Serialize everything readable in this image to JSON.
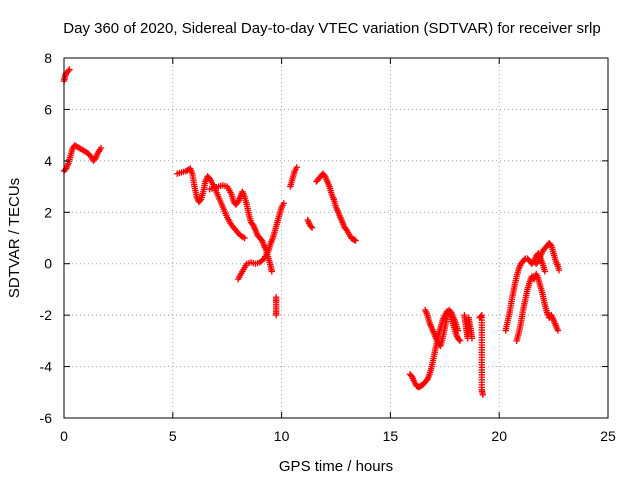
{
  "chart_data": {
    "type": "scatter",
    "title": "Day 360 of 2020, Sidereal Day-to-day VTEC variation (SDTVAR) for receiver srlp",
    "xlabel": "GPS time / hours",
    "ylabel": "SDTVAR / TECUs",
    "xlim": [
      0,
      25
    ],
    "ylim": [
      -6,
      8
    ],
    "xticks": [
      0,
      5,
      10,
      15,
      20,
      25
    ],
    "yticks": [
      -6,
      -4,
      -2,
      0,
      2,
      4,
      6,
      8
    ],
    "xtick_labels": [
      "0",
      "5",
      "10",
      "15",
      "20",
      "25"
    ],
    "ytick_labels": [
      "-6",
      "-4",
      "-2",
      "0",
      "2",
      "4",
      "6",
      "8"
    ],
    "grid": true,
    "marker": "plus",
    "color": "#ff0000",
    "series": [
      {
        "segments": [
          [
            [
              0.0,
              7.1
            ],
            [
              0.05,
              7.3
            ],
            [
              0.1,
              7.4
            ],
            [
              0.2,
              7.5
            ],
            [
              0.25,
              7.55
            ]
          ],
          [
            [
              0.0,
              3.6
            ],
            [
              0.1,
              3.7
            ],
            [
              0.2,
              3.9
            ],
            [
              0.3,
              4.2
            ],
            [
              0.4,
              4.5
            ],
            [
              0.5,
              4.6
            ],
            [
              0.7,
              4.5
            ],
            [
              0.9,
              4.4
            ],
            [
              1.1,
              4.3
            ],
            [
              1.25,
              4.15
            ],
            [
              1.35,
              4.0
            ],
            [
              1.45,
              4.1
            ],
            [
              1.55,
              4.3
            ],
            [
              1.7,
              4.5
            ]
          ],
          [
            [
              5.2,
              3.5
            ],
            [
              5.4,
              3.55
            ],
            [
              5.6,
              3.6
            ],
            [
              5.8,
              3.7
            ],
            [
              5.9,
              3.5
            ],
            [
              6.0,
              3.0
            ],
            [
              6.1,
              2.6
            ],
            [
              6.2,
              2.4
            ],
            [
              6.3,
              2.5
            ],
            [
              6.4,
              2.8
            ],
            [
              6.5,
              3.2
            ],
            [
              6.6,
              3.4
            ],
            [
              6.7,
              3.3
            ],
            [
              6.9,
              3.0
            ],
            [
              7.1,
              2.6
            ],
            [
              7.3,
              2.2
            ],
            [
              7.5,
              1.8
            ],
            [
              7.7,
              1.5
            ],
            [
              7.9,
              1.3
            ],
            [
              8.1,
              1.1
            ],
            [
              8.3,
              1.0
            ]
          ],
          [
            [
              6.7,
              2.9
            ],
            [
              6.9,
              2.95
            ],
            [
              7.1,
              3.0
            ],
            [
              7.3,
              3.05
            ],
            [
              7.5,
              3.0
            ],
            [
              7.7,
              2.7
            ],
            [
              7.8,
              2.4
            ],
            [
              7.9,
              2.3
            ],
            [
              8.0,
              2.4
            ],
            [
              8.1,
              2.6
            ],
            [
              8.2,
              2.8
            ],
            [
              8.3,
              2.6
            ],
            [
              8.4,
              2.3
            ],
            [
              8.5,
              1.9
            ],
            [
              8.6,
              1.6
            ],
            [
              8.7,
              1.5
            ],
            [
              8.8,
              1.3
            ],
            [
              8.9,
              1.1
            ],
            [
              9.0,
              1.0
            ],
            [
              9.1,
              0.9
            ],
            [
              9.2,
              0.7
            ],
            [
              9.3,
              0.5
            ],
            [
              9.4,
              0.2
            ],
            [
              9.5,
              -0.1
            ],
            [
              9.55,
              -0.3
            ]
          ],
          [
            [
              8.0,
              -0.6
            ],
            [
              8.1,
              -0.45
            ],
            [
              8.2,
              -0.3
            ],
            [
              8.3,
              -0.15
            ],
            [
              8.4,
              0.0
            ],
            [
              8.6,
              0.05
            ],
            [
              8.8,
              0.0
            ],
            [
              9.0,
              0.05
            ],
            [
              9.2,
              0.2
            ],
            [
              9.4,
              0.5
            ],
            [
              9.5,
              0.8
            ],
            [
              9.6,
              1.0
            ],
            [
              9.7,
              1.3
            ],
            [
              9.8,
              1.6
            ],
            [
              9.9,
              1.9
            ],
            [
              10.0,
              2.2
            ],
            [
              10.1,
              2.35
            ]
          ],
          [
            [
              9.75,
              -1.3
            ],
            [
              9.75,
              -1.5
            ],
            [
              9.75,
              -1.8
            ],
            [
              9.75,
              -2.0
            ]
          ],
          [
            [
              10.4,
              3.0
            ],
            [
              10.5,
              3.3
            ],
            [
              10.6,
              3.6
            ],
            [
              10.7,
              3.75
            ]
          ],
          [
            [
              11.2,
              1.7
            ],
            [
              11.3,
              1.5
            ],
            [
              11.4,
              1.4
            ]
          ],
          [
            [
              11.6,
              3.2
            ],
            [
              11.7,
              3.3
            ],
            [
              11.8,
              3.4
            ],
            [
              11.9,
              3.5
            ],
            [
              12.0,
              3.4
            ],
            [
              12.1,
              3.2
            ],
            [
              12.2,
              3.0
            ],
            [
              12.3,
              2.7
            ],
            [
              12.4,
              2.5
            ],
            [
              12.5,
              2.2
            ],
            [
              12.6,
              2.0
            ],
            [
              12.7,
              1.8
            ],
            [
              12.8,
              1.6
            ],
            [
              12.9,
              1.4
            ],
            [
              13.0,
              1.3
            ],
            [
              13.1,
              1.15
            ],
            [
              13.2,
              1.0
            ],
            [
              13.3,
              0.95
            ],
            [
              13.4,
              0.9
            ]
          ],
          [
            [
              15.9,
              -4.3
            ],
            [
              16.0,
              -4.4
            ],
            [
              16.1,
              -4.6
            ],
            [
              16.2,
              -4.75
            ],
            [
              16.3,
              -4.8
            ],
            [
              16.4,
              -4.75
            ],
            [
              16.5,
              -4.7
            ],
            [
              16.6,
              -4.6
            ],
            [
              16.7,
              -4.5
            ],
            [
              16.8,
              -4.3
            ],
            [
              16.9,
              -4.0
            ],
            [
              17.0,
              -3.6
            ],
            [
              17.1,
              -3.2
            ],
            [
              17.2,
              -2.8
            ],
            [
              17.3,
              -2.5
            ],
            [
              17.4,
              -2.2
            ],
            [
              17.5,
              -2.0
            ],
            [
              17.6,
              -1.85
            ],
            [
              17.7,
              -1.9
            ],
            [
              17.8,
              -2.1
            ],
            [
              17.9,
              -2.4
            ],
            [
              18.0,
              -2.7
            ],
            [
              18.1,
              -2.9
            ],
            [
              18.2,
              -3.0
            ]
          ],
          [
            [
              16.6,
              -1.8
            ],
            [
              16.7,
              -2.0
            ],
            [
              16.8,
              -2.3
            ],
            [
              16.9,
              -2.5
            ],
            [
              17.0,
              -2.7
            ],
            [
              17.1,
              -2.9
            ],
            [
              17.2,
              -3.1
            ],
            [
              17.3,
              -3.2
            ],
            [
              17.4,
              -2.9
            ],
            [
              17.5,
              -2.5
            ],
            [
              17.6,
              -2.1
            ],
            [
              17.7,
              -1.8
            ],
            [
              17.8,
              -1.9
            ],
            [
              17.9,
              -2.1
            ],
            [
              18.0,
              -2.3
            ],
            [
              18.1,
              -2.6
            ]
          ],
          [
            [
              18.4,
              -2.0
            ],
            [
              18.45,
              -2.3
            ],
            [
              18.5,
              -2.6
            ],
            [
              18.55,
              -2.9
            ],
            [
              18.6,
              -2.5
            ],
            [
              18.6,
              -2.1
            ],
            [
              18.7,
              -2.6
            ],
            [
              18.75,
              -2.9
            ]
          ],
          [
            [
              19.1,
              -2.1
            ],
            [
              19.2,
              -2.0
            ],
            [
              19.2,
              -4.9
            ],
            [
              19.25,
              -5.1
            ]
          ],
          [
            [
              20.3,
              -2.6
            ],
            [
              20.4,
              -2.2
            ],
            [
              20.5,
              -1.8
            ],
            [
              20.6,
              -1.3
            ],
            [
              20.7,
              -0.9
            ],
            [
              20.8,
              -0.5
            ],
            [
              20.9,
              -0.2
            ],
            [
              21.0,
              0.0
            ],
            [
              21.1,
              0.1
            ],
            [
              21.2,
              0.2
            ],
            [
              21.3,
              0.2
            ],
            [
              21.4,
              0.1
            ],
            [
              21.5,
              0.0
            ],
            [
              21.6,
              0.1
            ],
            [
              21.7,
              0.3
            ],
            [
              21.8,
              0.4
            ],
            [
              21.9,
              0.2
            ],
            [
              22.0,
              0.0
            ],
            [
              22.1,
              -0.3
            ]
          ],
          [
            [
              20.8,
              -3.0
            ],
            [
              20.9,
              -2.7
            ],
            [
              21.0,
              -2.3
            ],
            [
              21.1,
              -1.8
            ],
            [
              21.2,
              -1.4
            ],
            [
              21.3,
              -1.0
            ],
            [
              21.4,
              -0.7
            ],
            [
              21.5,
              -0.5
            ],
            [
              21.6,
              -0.6
            ],
            [
              21.7,
              -0.4
            ],
            [
              21.8,
              -0.6
            ],
            [
              21.9,
              -0.9
            ],
            [
              22.0,
              -1.2
            ],
            [
              22.1,
              -1.6
            ],
            [
              22.2,
              -1.9
            ],
            [
              22.3,
              -2.1
            ],
            [
              22.4,
              -2.0
            ],
            [
              22.5,
              -2.2
            ],
            [
              22.6,
              -2.4
            ],
            [
              22.7,
              -2.6
            ]
          ],
          [
            [
              21.6,
              0.1
            ],
            [
              21.7,
              0.0
            ],
            [
              21.8,
              0.1
            ],
            [
              21.9,
              0.3
            ],
            [
              22.0,
              0.5
            ],
            [
              22.1,
              0.6
            ],
            [
              22.2,
              0.7
            ],
            [
              22.3,
              0.8
            ],
            [
              22.4,
              0.7
            ],
            [
              22.5,
              0.4
            ],
            [
              22.6,
              0.1
            ],
            [
              22.7,
              -0.1
            ],
            [
              22.75,
              -0.25
            ]
          ]
        ]
      }
    ]
  }
}
